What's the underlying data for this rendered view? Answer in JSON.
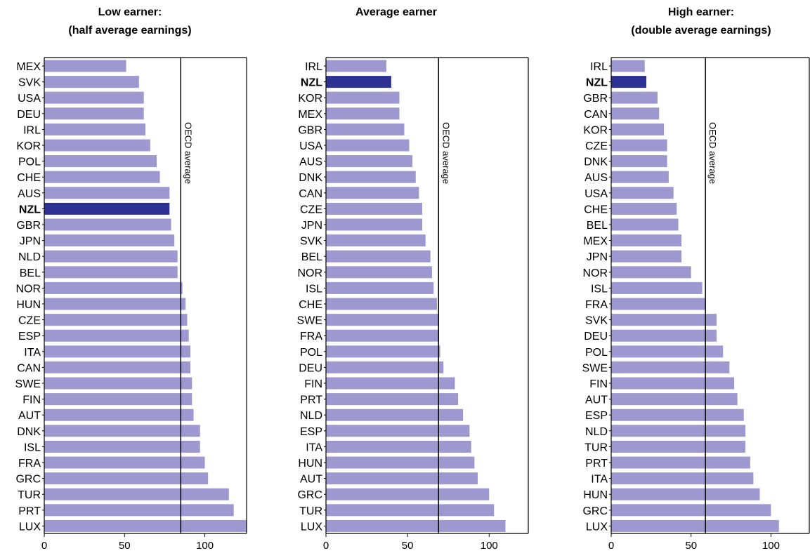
{
  "chart_data": [
    {
      "type": "bar",
      "orientation": "horizontal",
      "title": "Low earner:",
      "subtitle": "(half average earnings)",
      "categories": [
        "MEX",
        "SVK",
        "USA",
        "DEU",
        "IRL",
        "KOR",
        "POL",
        "CHE",
        "AUS",
        "NZL",
        "GBR",
        "JPN",
        "NLD",
        "BEL",
        "NOR",
        "HUN",
        "CZE",
        "ESP",
        "ITA",
        "CAN",
        "SWE",
        "FIN",
        "AUT",
        "DNK",
        "ISL",
        "FRA",
        "GRC",
        "TUR",
        "PRT",
        "LUX"
      ],
      "values": [
        51,
        59,
        62,
        62,
        63,
        66,
        70,
        72,
        78,
        78,
        79,
        81,
        83,
        83,
        86,
        88,
        89,
        90,
        91,
        91,
        92,
        92,
        93,
        97,
        97,
        100,
        102,
        115,
        118,
        127
      ],
      "highlight": "NZL",
      "reference_line": {
        "label": "OECD average",
        "value": 85
      },
      "xlim": [
        0,
        126
      ],
      "x_ticks": [
        0,
        50,
        100
      ],
      "grid": false
    },
    {
      "type": "bar",
      "orientation": "horizontal",
      "title": "Average earner",
      "subtitle": "",
      "categories": [
        "IRL",
        "NZL",
        "KOR",
        "MEX",
        "GBR",
        "USA",
        "AUS",
        "DNK",
        "CAN",
        "CZE",
        "JPN",
        "SVK",
        "BEL",
        "NOR",
        "ISL",
        "CHE",
        "SWE",
        "FRA",
        "POL",
        "DEU",
        "FIN",
        "PRT",
        "NLD",
        "ESP",
        "ITA",
        "HUN",
        "AUT",
        "GRC",
        "TUR",
        "LUX"
      ],
      "values": [
        37,
        40,
        45,
        45,
        48,
        51,
        53,
        55,
        57,
        59,
        59,
        61,
        64,
        65,
        66,
        68,
        69,
        69,
        70,
        72,
        79,
        81,
        84,
        88,
        89,
        91,
        93,
        100,
        103,
        110
      ],
      "highlight": "NZL",
      "reference_line": {
        "label": "OECD average",
        "value": 69
      },
      "xlim": [
        0,
        124
      ],
      "x_ticks": [
        0,
        50,
        100
      ],
      "grid": false
    },
    {
      "type": "bar",
      "orientation": "horizontal",
      "title": "High earner:",
      "subtitle": "(double average earnings)",
      "categories": [
        "IRL",
        "NZL",
        "GBR",
        "CAN",
        "KOR",
        "CZE",
        "DNK",
        "AUS",
        "USA",
        "CHE",
        "BEL",
        "MEX",
        "JPN",
        "NOR",
        "ISL",
        "FRA",
        "SVK",
        "DEU",
        "POL",
        "SWE",
        "FIN",
        "AUT",
        "ESP",
        "NLD",
        "TUR",
        "PRT",
        "ITA",
        "HUN",
        "GRC",
        "LUX"
      ],
      "values": [
        21,
        22,
        29,
        30,
        33,
        35,
        35,
        36,
        39,
        41,
        42,
        44,
        44,
        50,
        57,
        59,
        66,
        66,
        70,
        74,
        77,
        79,
        83,
        84,
        84,
        87,
        89,
        93,
        100,
        105
      ],
      "highlight": "NZL",
      "reference_line": {
        "label": "OECD average",
        "value": 59
      },
      "xlim": [
        0,
        124
      ],
      "x_ticks": [
        0,
        50,
        100
      ],
      "grid": false
    }
  ],
  "colors": {
    "bar": "#9d98cf",
    "highlight_bar": "#2d3192",
    "axis": "#000000",
    "text": "#000000"
  }
}
